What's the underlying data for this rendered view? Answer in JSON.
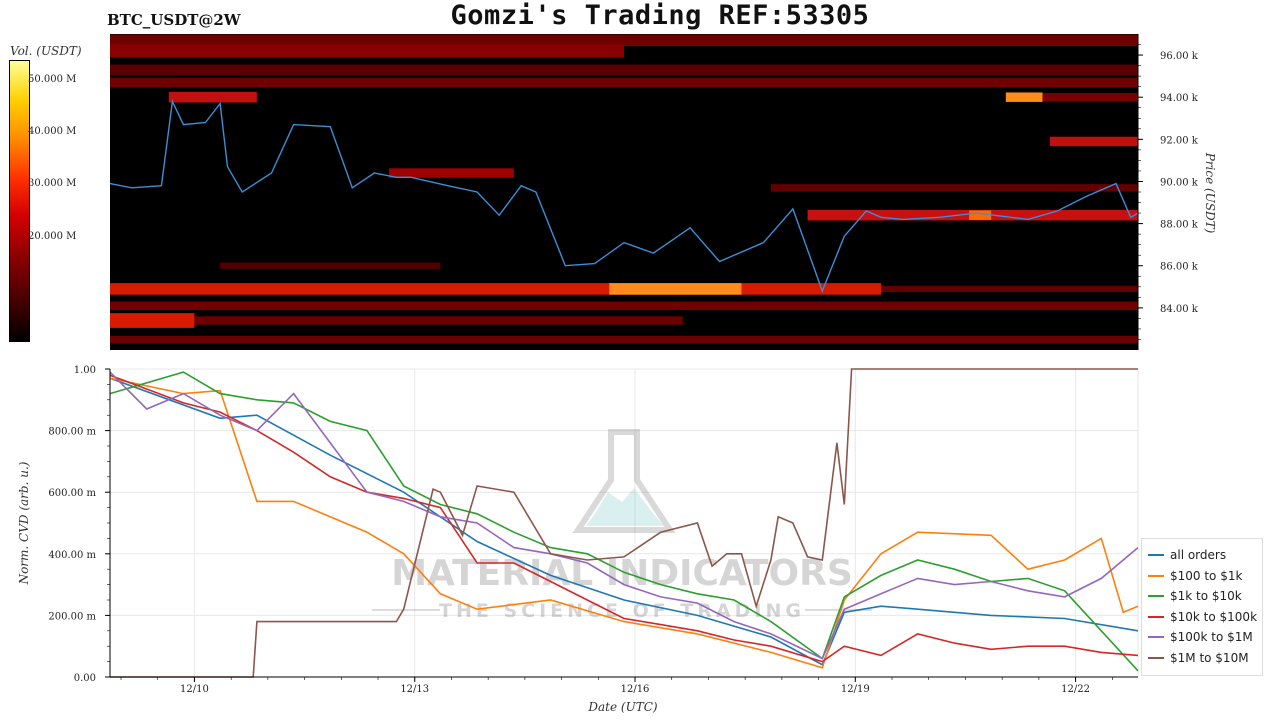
{
  "header": {
    "title": "Gomzi's Trading REF:53305",
    "symbol": "BTC_USDT@2W"
  },
  "colorbar": {
    "label": "Vol. (USDT)",
    "ticks": [
      "50.000 M",
      "40.000 M",
      "30.000 M",
      "20.000 M"
    ],
    "tick_values": [
      50,
      40,
      30,
      20
    ],
    "max": 54
  },
  "watermark": {
    "text": "MATERIAL INDICATORS",
    "tagline": "THE SCIENCE OF TRADING"
  },
  "chart_data": [
    {
      "type": "heatmap",
      "ylabel": "Price (USDT)",
      "y_ticks": [
        "96.00 k",
        "94.00 k",
        "92.00 k",
        "90.00 k",
        "88.00 k",
        "86.00 k",
        "84.00 k"
      ],
      "y_tick_values": [
        96000,
        94000,
        92000,
        90000,
        88000,
        86000,
        84000
      ],
      "ylim": [
        82000,
        97000
      ],
      "xlim": [
        0,
        14
      ],
      "price_series": {
        "x": [
          0,
          0.3,
          0.7,
          0.85,
          1.0,
          1.3,
          1.5,
          1.6,
          1.8,
          2.2,
          2.5,
          3.0,
          3.3,
          3.6,
          3.9,
          4.1,
          4.6,
          5.0,
          5.3,
          5.6,
          5.8,
          6.2,
          6.6,
          7.0,
          7.4,
          7.9,
          8.3,
          8.9,
          9.3,
          9.7,
          10.0,
          10.3,
          10.5,
          10.8,
          11.3,
          11.8,
          12.5,
          12.9,
          13.3,
          13.7,
          13.9,
          14.0
        ],
        "y": [
          89900,
          89700,
          89800,
          93800,
          92700,
          92800,
          93700,
          90700,
          89500,
          90400,
          92700,
          92600,
          89700,
          90400,
          90200,
          90200,
          89800,
          89500,
          88400,
          89800,
          89500,
          86000,
          86100,
          87100,
          86600,
          87800,
          86200,
          87100,
          88700,
          84800,
          87400,
          88600,
          88300,
          88200,
          88300,
          88500,
          88200,
          88600,
          89300,
          89900,
          88300,
          88500
        ]
      }
    },
    {
      "type": "line",
      "xlabel": "Date (UTC)",
      "ylabel": "Norm. CVD (arb. u.)",
      "x_ticks": [
        "12/10",
        "12/13",
        "12/16",
        "12/19",
        "12/22"
      ],
      "x_tick_values": [
        1.15,
        4.15,
        7.15,
        10.15,
        13.15
      ],
      "y_ticks": [
        "1.00",
        "800.00 m",
        "600.00 m",
        "400.00 m",
        "200.00 m",
        "0.00"
      ],
      "y_tick_values": [
        1.0,
        0.8,
        0.6,
        0.4,
        0.2,
        0.0
      ],
      "xlim": [
        0,
        14
      ],
      "ylim": [
        0,
        1
      ],
      "legend_position": "right",
      "series": [
        {
          "name": "all orders",
          "color": "#1f77b4",
          "x": [
            0,
            1.5,
            2.0,
            3.0,
            4.0,
            5.0,
            6.0,
            7.0,
            8.0,
            9.0,
            9.7,
            10.0,
            10.5,
            11.0,
            12.0,
            13.0,
            14.0
          ],
          "y": [
            0.97,
            0.84,
            0.85,
            0.72,
            0.6,
            0.44,
            0.33,
            0.25,
            0.2,
            0.13,
            0.04,
            0.21,
            0.23,
            0.22,
            0.2,
            0.19,
            0.15
          ]
        },
        {
          "name": "$100 to $1k",
          "color": "#ff7f0e",
          "x": [
            0,
            1.0,
            1.5,
            2.0,
            2.5,
            3.5,
            4.0,
            4.5,
            5.0,
            6.0,
            7.0,
            8.0,
            9.0,
            9.7,
            10.0,
            10.5,
            11.0,
            12.0,
            12.5,
            13.0,
            13.5,
            13.8,
            14.0
          ],
          "y": [
            0.97,
            0.92,
            0.93,
            0.57,
            0.57,
            0.47,
            0.4,
            0.27,
            0.22,
            0.25,
            0.18,
            0.14,
            0.08,
            0.03,
            0.25,
            0.4,
            0.47,
            0.46,
            0.35,
            0.38,
            0.45,
            0.21,
            0.23
          ]
        },
        {
          "name": "$1k to $10k",
          "color": "#2ca02c",
          "x": [
            0,
            1.0,
            1.5,
            2.0,
            2.5,
            3.0,
            3.5,
            4.0,
            4.5,
            5.0,
            5.5,
            6.0,
            6.5,
            7.0,
            7.5,
            8.0,
            8.5,
            9.0,
            9.7,
            10.0,
            10.5,
            11.0,
            11.5,
            12.0,
            12.5,
            13.0,
            13.5,
            14.0
          ],
          "y": [
            0.92,
            0.99,
            0.92,
            0.9,
            0.89,
            0.83,
            0.8,
            0.62,
            0.56,
            0.53,
            0.47,
            0.42,
            0.4,
            0.34,
            0.3,
            0.27,
            0.25,
            0.18,
            0.06,
            0.26,
            0.33,
            0.38,
            0.35,
            0.31,
            0.32,
            0.28,
            0.15,
            0.02
          ]
        },
        {
          "name": "$10k to $100k",
          "color": "#d62728",
          "x": [
            0,
            1.0,
            1.5,
            2.0,
            2.5,
            3.0,
            3.5,
            4.0,
            4.5,
            5.0,
            5.5,
            6.0,
            6.5,
            7.0,
            7.5,
            8.0,
            8.5,
            9.0,
            9.7,
            10.0,
            10.5,
            11.0,
            11.5,
            12.0,
            12.5,
            13.0,
            13.5,
            14.0
          ],
          "y": [
            0.98,
            0.89,
            0.86,
            0.8,
            0.73,
            0.65,
            0.6,
            0.58,
            0.55,
            0.37,
            0.37,
            0.31,
            0.25,
            0.19,
            0.17,
            0.15,
            0.12,
            0.1,
            0.05,
            0.1,
            0.07,
            0.14,
            0.11,
            0.09,
            0.1,
            0.1,
            0.08,
            0.07
          ]
        },
        {
          "name": "$100k to $1M",
          "color": "#9467bd",
          "x": [
            0,
            0.5,
            1.0,
            1.5,
            2.0,
            2.5,
            3.0,
            3.5,
            4.0,
            4.5,
            5.0,
            5.5,
            6.0,
            6.5,
            7.0,
            7.5,
            8.0,
            8.5,
            9.0,
            9.7,
            10.0,
            10.5,
            11.0,
            11.5,
            12.0,
            12.5,
            13.0,
            13.5,
            14.0
          ],
          "y": [
            0.99,
            0.87,
            0.92,
            0.85,
            0.8,
            0.92,
            0.76,
            0.6,
            0.57,
            0.52,
            0.5,
            0.42,
            0.4,
            0.37,
            0.3,
            0.26,
            0.24,
            0.18,
            0.14,
            0.06,
            0.22,
            0.27,
            0.32,
            0.3,
            0.31,
            0.28,
            0.26,
            0.32,
            0.42
          ]
        },
        {
          "name": "$1M to $10M",
          "color": "#8c564b",
          "x": [
            0,
            0.3,
            1.95,
            2.0,
            3.9,
            4.0,
            4.4,
            4.5,
            4.8,
            5.0,
            5.5,
            6.0,
            6.5,
            7.0,
            7.5,
            8.0,
            8.2,
            8.4,
            8.6,
            8.8,
            9.0,
            9.1,
            9.3,
            9.5,
            9.7,
            9.9,
            10.0,
            10.1,
            10.2,
            11.0,
            12.0,
            13.0,
            14.0
          ],
          "y": [
            0.0,
            0.0,
            0.0,
            0.18,
            0.18,
            0.22,
            0.61,
            0.6,
            0.46,
            0.62,
            0.6,
            0.4,
            0.38,
            0.39,
            0.47,
            0.5,
            0.36,
            0.4,
            0.4,
            0.23,
            0.38,
            0.52,
            0.5,
            0.39,
            0.38,
            0.76,
            0.56,
            1.0,
            1.0,
            1.0,
            1.0,
            1.0,
            1.0
          ]
        }
      ]
    }
  ]
}
